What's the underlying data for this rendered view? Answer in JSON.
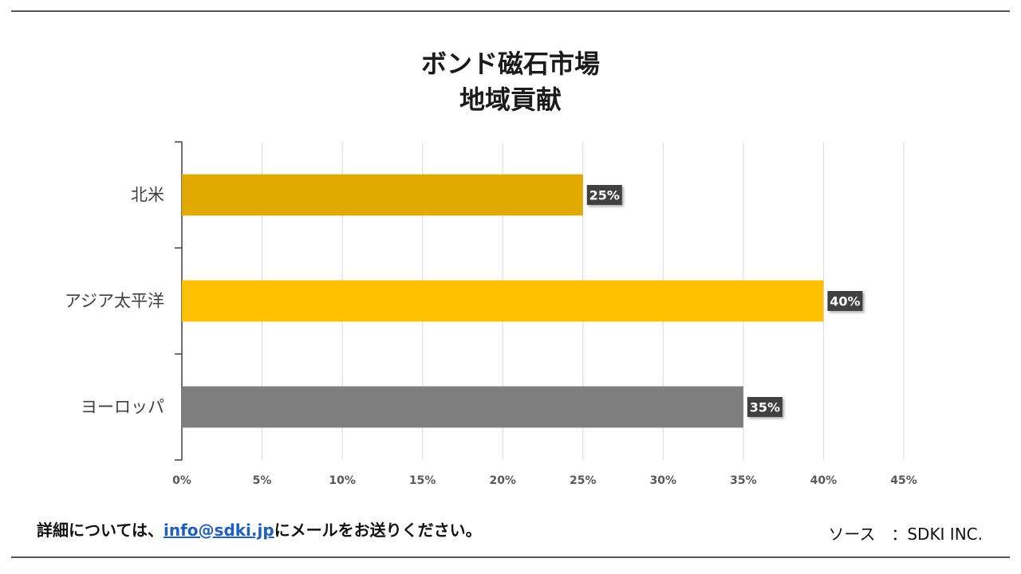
{
  "header": {
    "title_line1": "ボンド磁石市場",
    "title_line2": "地域貢献"
  },
  "chart_data": {
    "type": "bar",
    "orientation": "horizontal",
    "categories": [
      "北米",
      "アジア太平洋",
      "ヨーロッパ"
    ],
    "values": [
      25,
      40,
      35
    ],
    "data_labels": [
      "25%",
      "40%",
      "35%"
    ],
    "bar_colors": [
      "#e2aa00",
      "#ffc000",
      "#7f7f7f"
    ],
    "xlim": [
      0,
      45
    ],
    "x_ticks": [
      0,
      5,
      10,
      15,
      20,
      25,
      30,
      35,
      40,
      45
    ],
    "x_tick_labels": [
      "0%",
      "5%",
      "10%",
      "15%",
      "20%",
      "25%",
      "30%",
      "35%",
      "40%",
      "45%"
    ],
    "grid": true,
    "legend": "none"
  },
  "footer": {
    "note_prefix": "詳細については、",
    "email": "info@sdki.jp",
    "note_suffix": "にメールをお送りください。",
    "source": "ソース　：SDKI INC."
  }
}
